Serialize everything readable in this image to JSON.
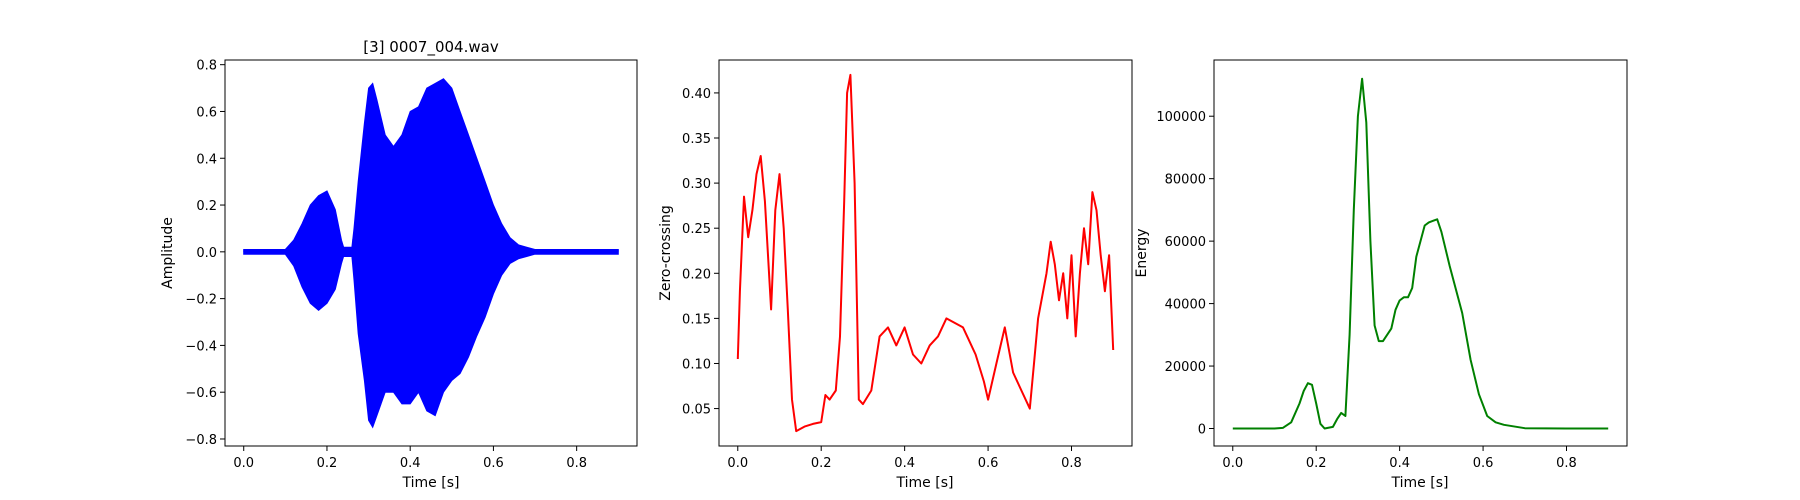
{
  "chart_data": [
    {
      "type": "line",
      "title": "[3] 0007_004.wav",
      "xlabel": "Time [s]",
      "ylabel": "Amplitude",
      "xlim": [
        -0.045,
        0.945
      ],
      "ylim": [
        -0.83,
        0.82
      ],
      "xticks": [
        0.0,
        0.2,
        0.4,
        0.6,
        0.8
      ],
      "xtick_labels": [
        "0.0",
        "0.2",
        "0.4",
        "0.6",
        "0.8"
      ],
      "yticks": [
        -0.8,
        -0.6,
        -0.4,
        -0.2,
        0.0,
        0.2,
        0.4,
        0.6,
        0.8
      ],
      "ytick_labels": [
        "−0.8",
        "−0.6",
        "−0.4",
        "−0.2",
        "0.0",
        "0.2",
        "0.4",
        "0.6",
        "0.8"
      ],
      "grid": false,
      "series": [
        {
          "color": "#0000ff",
          "style": "waveform",
          "x": [
            0.0,
            0.1,
            0.12,
            0.14,
            0.16,
            0.18,
            0.2,
            0.22,
            0.235,
            0.24,
            0.25,
            0.26,
            0.265,
            0.275,
            0.29,
            0.3,
            0.31,
            0.32,
            0.34,
            0.36,
            0.38,
            0.4,
            0.42,
            0.44,
            0.46,
            0.48,
            0.5,
            0.52,
            0.54,
            0.56,
            0.58,
            0.6,
            0.62,
            0.64,
            0.66,
            0.68,
            0.7,
            0.72,
            0.76,
            0.8,
            0.85,
            0.9
          ],
          "upper": [
            0.01,
            0.01,
            0.05,
            0.12,
            0.2,
            0.24,
            0.26,
            0.18,
            0.05,
            0.02,
            0.02,
            0.02,
            0.1,
            0.3,
            0.55,
            0.7,
            0.72,
            0.65,
            0.5,
            0.45,
            0.5,
            0.6,
            0.62,
            0.7,
            0.72,
            0.74,
            0.7,
            0.6,
            0.5,
            0.4,
            0.3,
            0.2,
            0.12,
            0.06,
            0.03,
            0.02,
            0.01,
            0.01,
            0.01,
            0.01,
            0.01,
            0.01
          ],
          "lower": [
            -0.01,
            -0.01,
            -0.06,
            -0.15,
            -0.22,
            -0.25,
            -0.22,
            -0.16,
            -0.05,
            -0.02,
            -0.02,
            -0.02,
            -0.12,
            -0.35,
            -0.55,
            -0.72,
            -0.75,
            -0.7,
            -0.6,
            -0.6,
            -0.65,
            -0.65,
            -0.6,
            -0.68,
            -0.7,
            -0.6,
            -0.55,
            -0.52,
            -0.45,
            -0.36,
            -0.28,
            -0.18,
            -0.1,
            -0.05,
            -0.03,
            -0.02,
            -0.01,
            -0.01,
            -0.01,
            -0.01,
            -0.01,
            -0.01
          ]
        }
      ]
    },
    {
      "type": "line",
      "title": "",
      "xlabel": "Time [s]",
      "ylabel": "Zero-crossing",
      "xlim": [
        -0.045,
        0.945
      ],
      "ylim": [
        0.0085,
        0.4365
      ],
      "xticks": [
        0.0,
        0.2,
        0.4,
        0.6,
        0.8
      ],
      "xtick_labels": [
        "0.0",
        "0.2",
        "0.4",
        "0.6",
        "0.8"
      ],
      "yticks": [
        0.05,
        0.1,
        0.15,
        0.2,
        0.25,
        0.3,
        0.35,
        0.4
      ],
      "ytick_labels": [
        "0.05",
        "0.10",
        "0.15",
        "0.20",
        "0.25",
        "0.30",
        "0.35",
        "0.40"
      ],
      "grid": false,
      "series": [
        {
          "color": "#ff0000",
          "style": "line",
          "x": [
            0.0,
            0.005,
            0.015,
            0.025,
            0.035,
            0.045,
            0.055,
            0.065,
            0.08,
            0.09,
            0.1,
            0.11,
            0.12,
            0.13,
            0.14,
            0.16,
            0.18,
            0.2,
            0.21,
            0.22,
            0.235,
            0.245,
            0.255,
            0.262,
            0.27,
            0.28,
            0.29,
            0.3,
            0.32,
            0.34,
            0.36,
            0.38,
            0.4,
            0.42,
            0.44,
            0.46,
            0.48,
            0.5,
            0.52,
            0.54,
            0.55,
            0.57,
            0.59,
            0.6,
            0.62,
            0.64,
            0.66,
            0.68,
            0.7,
            0.71,
            0.72,
            0.74,
            0.75,
            0.76,
            0.77,
            0.78,
            0.79,
            0.8,
            0.81,
            0.82,
            0.83,
            0.84,
            0.85,
            0.86,
            0.87,
            0.88,
            0.89,
            0.9
          ],
          "y": [
            0.105,
            0.18,
            0.285,
            0.24,
            0.27,
            0.31,
            0.33,
            0.28,
            0.16,
            0.27,
            0.31,
            0.25,
            0.16,
            0.06,
            0.025,
            0.03,
            0.033,
            0.035,
            0.065,
            0.06,
            0.07,
            0.13,
            0.28,
            0.4,
            0.42,
            0.3,
            0.06,
            0.055,
            0.07,
            0.13,
            0.14,
            0.12,
            0.14,
            0.11,
            0.1,
            0.12,
            0.13,
            0.15,
            0.145,
            0.14,
            0.13,
            0.11,
            0.08,
            0.06,
            0.1,
            0.14,
            0.09,
            0.07,
            0.05,
            0.1,
            0.15,
            0.2,
            0.235,
            0.21,
            0.17,
            0.2,
            0.15,
            0.22,
            0.13,
            0.2,
            0.25,
            0.21,
            0.29,
            0.27,
            0.22,
            0.18,
            0.22,
            0.115
          ]
        }
      ]
    },
    {
      "type": "line",
      "title": "",
      "xlabel": "Time [s]",
      "ylabel": "Energy",
      "xlim": [
        -0.045,
        0.945
      ],
      "ylim": [
        -5600,
        118000
      ],
      "xticks": [
        0.0,
        0.2,
        0.4,
        0.6,
        0.8
      ],
      "xtick_labels": [
        "0.0",
        "0.2",
        "0.4",
        "0.6",
        "0.8"
      ],
      "yticks": [
        0,
        20000,
        40000,
        60000,
        80000,
        100000
      ],
      "ytick_labels": [
        "0",
        "20000",
        "40000",
        "60000",
        "80000",
        "100000"
      ],
      "grid": false,
      "series": [
        {
          "color": "#008000",
          "style": "line",
          "x": [
            0.0,
            0.1,
            0.12,
            0.14,
            0.16,
            0.17,
            0.18,
            0.19,
            0.2,
            0.21,
            0.22,
            0.24,
            0.25,
            0.26,
            0.27,
            0.28,
            0.29,
            0.3,
            0.31,
            0.32,
            0.33,
            0.34,
            0.35,
            0.36,
            0.38,
            0.39,
            0.4,
            0.41,
            0.42,
            0.43,
            0.44,
            0.45,
            0.46,
            0.47,
            0.48,
            0.49,
            0.5,
            0.52,
            0.54,
            0.55,
            0.57,
            0.59,
            0.61,
            0.63,
            0.65,
            0.7,
            0.8,
            0.9
          ],
          "y": [
            0,
            0,
            200,
            2000,
            8000,
            12000,
            14500,
            14000,
            8000,
            1500,
            0,
            500,
            3000,
            5000,
            4000,
            30000,
            70000,
            100000,
            112000,
            98000,
            60000,
            33000,
            28000,
            28000,
            32000,
            38000,
            41000,
            42000,
            42000,
            45000,
            55000,
            60000,
            65000,
            66000,
            66500,
            67000,
            63000,
            52000,
            42000,
            37000,
            22000,
            11000,
            4000,
            2000,
            1200,
            100,
            0,
            0
          ]
        }
      ]
    }
  ]
}
